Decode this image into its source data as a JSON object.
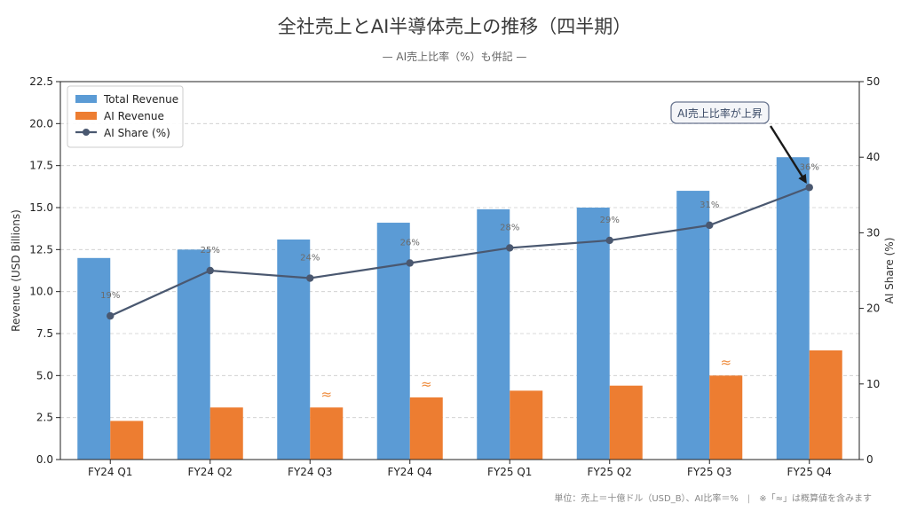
{
  "title": "全社売上とAI半導体売上の推移（四半期）",
  "subtitle": "— AI売上比率（%）も併記 —",
  "footnote": {
    "unit": "単位：売上＝十億ドル（USD_B）、AI比率＝%",
    "separator": "|",
    "note": "※「≈」は概算値を含みます"
  },
  "colors": {
    "total": "#5b9bd5",
    "ai": "#ed7d31",
    "share": "#4a5870",
    "approx": "#ee8a3a"
  },
  "chart_data": {
    "type": "bar",
    "categories": [
      "FY24 Q1",
      "FY24 Q2",
      "FY24 Q3",
      "FY24 Q4",
      "FY25 Q1",
      "FY25 Q2",
      "FY25 Q3",
      "FY25 Q4"
    ],
    "series": [
      {
        "name": "Total Revenue",
        "type": "bar",
        "axis": "left",
        "values": [
          12.0,
          12.5,
          13.1,
          14.1,
          14.9,
          15.0,
          16.0,
          18.0
        ]
      },
      {
        "name": "AI Revenue",
        "type": "bar",
        "axis": "left",
        "values": [
          2.3,
          3.1,
          3.1,
          3.7,
          4.1,
          4.4,
          5.0,
          6.5
        ]
      },
      {
        "name": "AI Share (%)",
        "type": "line",
        "axis": "right",
        "values": [
          19,
          25,
          24,
          26,
          28,
          29,
          31,
          36
        ]
      }
    ],
    "point_labels": [
      "19%",
      "25%",
      "24%",
      "26%",
      "28%",
      "29%",
      "31%",
      "36%"
    ],
    "approx_marks": [
      {
        "index": 2,
        "symbol": "≈"
      },
      {
        "index": 3,
        "symbol": "≈"
      },
      {
        "index": 6,
        "symbol": "≈"
      }
    ],
    "ylabel": "Revenue (USD Billions)",
    "y2label": "AI Share (%)",
    "ylim": [
      0,
      22.5
    ],
    "y2lim": [
      0,
      50
    ],
    "yticks": [
      "0.0",
      "2.5",
      "5.0",
      "7.5",
      "10.0",
      "12.5",
      "15.0",
      "17.5",
      "20.0",
      "22.5"
    ],
    "y2ticks": [
      "0",
      "10",
      "20",
      "30",
      "40",
      "50"
    ],
    "grid": true,
    "legend": "top-left",
    "annotation": {
      "text": "AI売上比率が上昇",
      "target_index": 7
    }
  }
}
